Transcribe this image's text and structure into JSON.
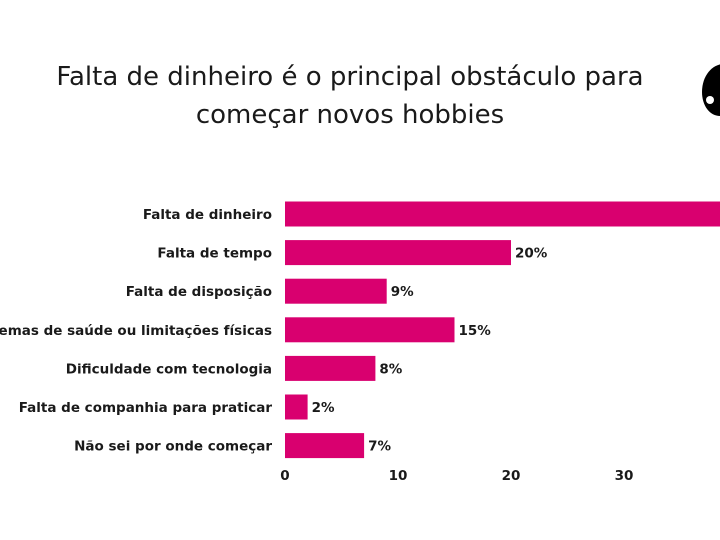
{
  "chart_data": {
    "type": "bar",
    "orientation": "horizontal",
    "title_lines": [
      "Falta de dinheiro é o principal obstáculo para",
      "começar novos hobbies"
    ],
    "categories": [
      "Falta de dinheiro",
      "Falta de tempo",
      "Falta de disposição",
      "Problemas de saúde ou limitações físicas",
      "Dificuldade com tecnologia",
      "Falta de companhia para praticar",
      "Não sei por onde começar"
    ],
    "values": [
      39,
      20,
      9,
      15,
      8,
      2,
      7
    ],
    "value_labels": [
      "",
      "20%",
      "9%",
      "15%",
      "8%",
      "2%",
      "7%"
    ],
    "x_ticks": [
      0,
      10,
      20,
      30
    ],
    "x_tick_labels": [
      "0",
      "10",
      "20",
      "30"
    ],
    "xlim": [
      0,
      38.5
    ],
    "grid": false,
    "legend": "none"
  },
  "colors": {
    "bar": "#D9006F",
    "text": "#1a1a1a",
    "logo": "#000000"
  },
  "icons": {
    "logo": "brand-logo-icon"
  }
}
